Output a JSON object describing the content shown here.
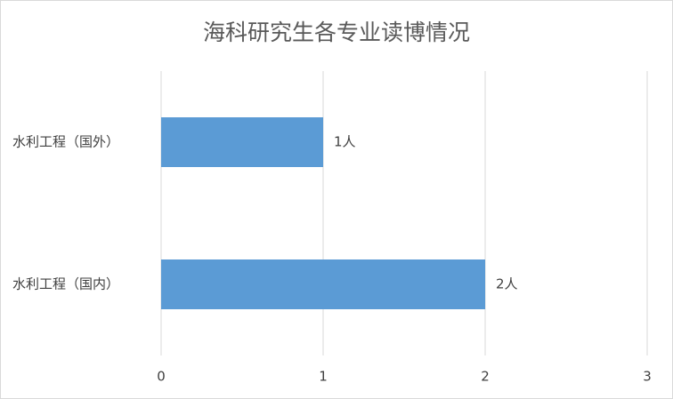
{
  "chart_data": {
    "type": "barh",
    "title": "海科研究生各专业读博情况",
    "categories": [
      "水利工程（国外）",
      "水利工程（国内）"
    ],
    "values": [
      1,
      2
    ],
    "value_labels": [
      "1人",
      "2人"
    ],
    "color": "#5b9bd5",
    "xlim": [
      0,
      3
    ],
    "xticks": [
      0,
      1,
      2,
      3
    ],
    "grid": true
  }
}
